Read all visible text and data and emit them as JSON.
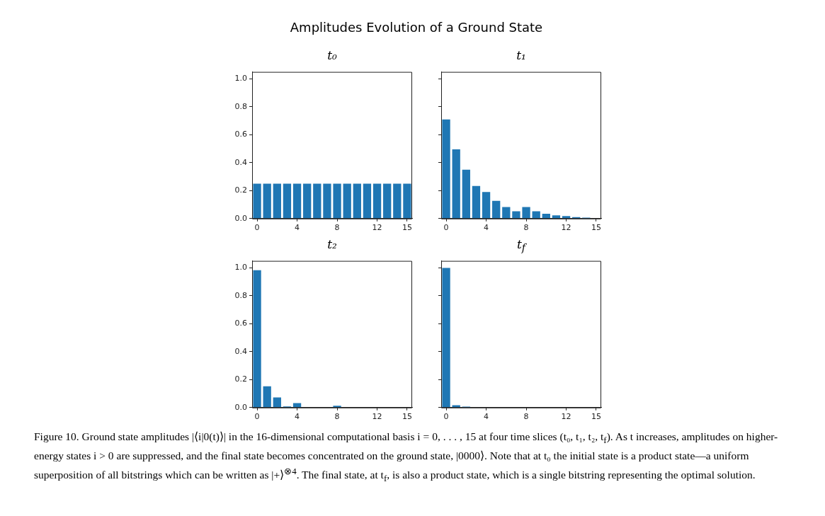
{
  "chart_data": [
    {
      "type": "other",
      "title": "Amplitudes Evolution of a Ground State"
    },
    {
      "type": "bar",
      "title": "t₀",
      "categories": [
        "0",
        null,
        null,
        null,
        "4",
        null,
        null,
        null,
        "8",
        null,
        null,
        null,
        "12",
        null,
        null,
        "15"
      ],
      "values": [
        0.25,
        0.25,
        0.25,
        0.25,
        0.25,
        0.25,
        0.25,
        0.25,
        0.25,
        0.25,
        0.25,
        0.25,
        0.25,
        0.25,
        0.25,
        0.25
      ],
      "color": "#1f77b4",
      "ylim": [
        0,
        1.05
      ],
      "yticks": [
        {
          "value": 0,
          "label": "0.0"
        },
        {
          "value": 0.2,
          "label": "0.2"
        },
        {
          "value": 0.4,
          "label": "0.4"
        },
        {
          "value": 0.6,
          "label": "0.6"
        },
        {
          "value": 0.8,
          "label": "0.8"
        },
        {
          "value": 1,
          "label": "1.0"
        }
      ]
    },
    {
      "type": "bar",
      "title": "t₁",
      "categories": [
        "0",
        null,
        null,
        null,
        "4",
        null,
        null,
        null,
        "8",
        null,
        null,
        null,
        "12",
        null,
        null,
        "15"
      ],
      "values": [
        0.71,
        0.495,
        0.35,
        0.233,
        0.19,
        0.127,
        0.083,
        0.052,
        0.083,
        0.052,
        0.035,
        0.023,
        0.018,
        0.01,
        0.007,
        null
      ],
      "color": "#1f77b4",
      "ylim": [
        0,
        1.05
      ],
      "yticks": [
        {
          "value": 0,
          "label": null
        },
        {
          "value": 0.2,
          "label": null
        },
        {
          "value": 0.4,
          "label": null
        },
        {
          "value": 0.6,
          "label": null
        },
        {
          "value": 0.8,
          "label": null
        },
        {
          "value": 1,
          "label": null
        }
      ],
      "tick_labels": "x"
    },
    {
      "type": "bar",
      "title": "t₂",
      "categories": [
        "0",
        null,
        null,
        null,
        "4",
        null,
        null,
        null,
        "8",
        null,
        null,
        null,
        "12",
        null,
        null,
        "15"
      ],
      "values": [
        0.983,
        0.152,
        0.072,
        0.008,
        0.032,
        0.003,
        null,
        0,
        0.013,
        0,
        0,
        0,
        0,
        0,
        0,
        0
      ],
      "color": "#1f77b4",
      "ylim": [
        0,
        1.05
      ],
      "yticks": [
        {
          "value": 0,
          "label": "0.0"
        },
        {
          "value": 0.2,
          "label": "0.2"
        },
        {
          "value": 0.4,
          "label": "0.4"
        },
        {
          "value": 0.6,
          "label": "0.6"
        },
        {
          "value": 0.8,
          "label": "0.8"
        },
        {
          "value": 1,
          "label": "1.0"
        }
      ]
    },
    {
      "type": "bar",
      "title": "t$_{f}$",
      "categories": [
        "0",
        null,
        null,
        null,
        "4",
        null,
        null,
        null,
        "8",
        null,
        null,
        null,
        "12",
        null,
        null,
        "15"
      ],
      "values": [
        1.0,
        0.017,
        0.007,
        null,
        null,
        0,
        0,
        0,
        0,
        0,
        0,
        0,
        0,
        0,
        0,
        0
      ],
      "color": "#1f77b4",
      "ylim": [
        0,
        1.05
      ],
      "yticks": [
        {
          "value": 0,
          "label": null
        },
        {
          "value": 0.2,
          "label": null
        },
        {
          "value": 0.4,
          "label": null
        },
        {
          "value": 0.6,
          "label": null
        },
        {
          "value": 0.8,
          "label": null
        },
        {
          "value": 1,
          "label": null
        }
      ],
      "tick_labels": "x"
    },
    {
      "type": "other",
      "annotations": [
        "Figure 10. Ground state amplitudes |⟨i|0(t)⟩| in the 16-dimensional computational basis i = 0, . . . , 15 at four time slices (t₀, t₁, t₂, t$_{f}$). As t increases, amplitudes on higher-energy states i > 0 are suppressed, and the final state becomes concentrated on the ground state, |0000⟩. Note that at t₀ the initial state is a product state—a uniform superposition of all bitstrings which can be written as |+⟩$^{⊗4}$. The final state, at t$_{f}$, is also a product state, which is a single bitstring representing the optimal solution."
      ]
    }
  ]
}
